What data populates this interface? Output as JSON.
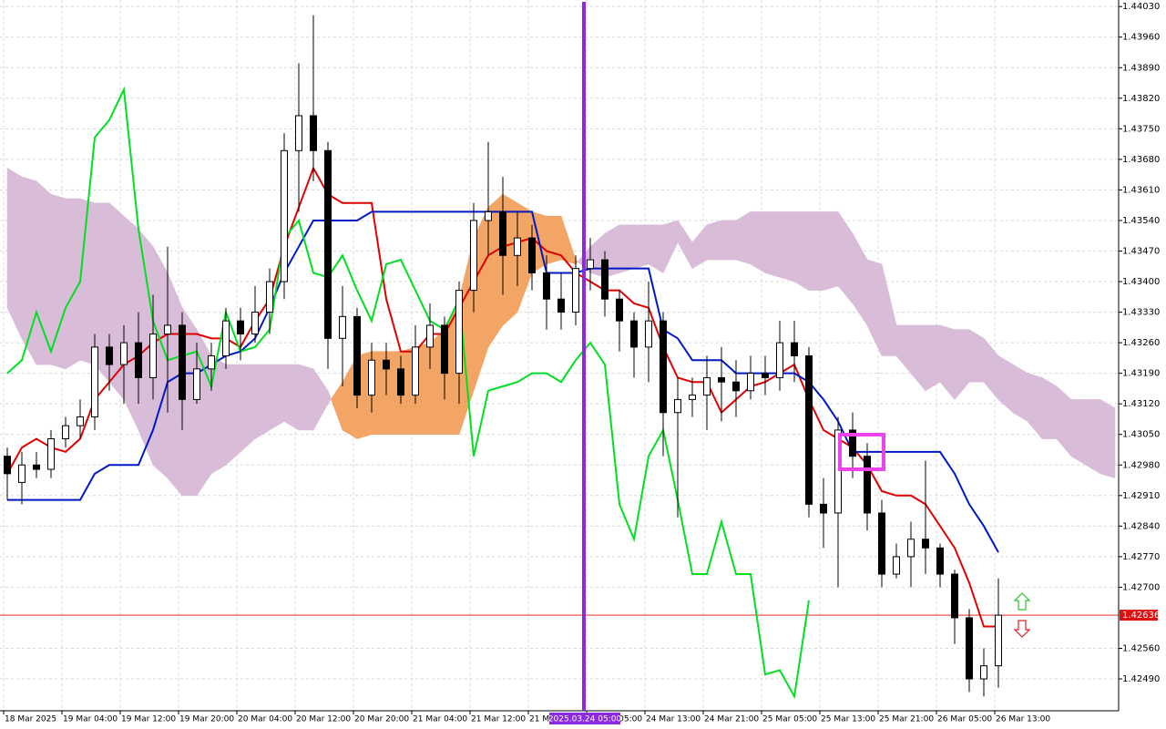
{
  "chart_data": {
    "type": "candlestick",
    "ylim": [
      1.42417,
      1.44045
    ],
    "yticks": [
      {
        "value": 1.4403,
        "label": "1.44030"
      },
      {
        "value": 1.4396,
        "label": "1.43960"
      },
      {
        "value": 1.4389,
        "label": "1.43890"
      },
      {
        "value": 1.4382,
        "label": "1.43820"
      },
      {
        "value": 1.4375,
        "label": "1.43750"
      },
      {
        "value": 1.4368,
        "label": "1.43680"
      },
      {
        "value": 1.4361,
        "label": "1.43610"
      },
      {
        "value": 1.4354,
        "label": "1.43540"
      },
      {
        "value": 1.4347,
        "label": "1.43470"
      },
      {
        "value": 1.434,
        "label": "1.43400"
      },
      {
        "value": 1.4333,
        "label": "1.43330"
      },
      {
        "value": 1.4326,
        "label": "1.43260"
      },
      {
        "value": 1.4319,
        "label": "1.43190"
      },
      {
        "value": 1.4312,
        "label": "1.43120"
      },
      {
        "value": 1.4305,
        "label": "1.43050"
      },
      {
        "value": 1.4298,
        "label": "1.42980"
      },
      {
        "value": 1.4291,
        "label": "1.42910"
      },
      {
        "value": 1.4284,
        "label": "1.42840"
      },
      {
        "value": 1.4277,
        "label": "1.42770"
      },
      {
        "value": 1.427,
        "label": "1.42700"
      },
      {
        "value": 1.4256,
        "label": "1.42560"
      },
      {
        "value": 1.4249,
        "label": "1.42490"
      }
    ],
    "grid": true,
    "x_labels": [
      "18 Mar 2025",
      "19 Mar 04:00",
      "19 Mar 12:00",
      "19 Mar 20:00",
      "20 Mar 04:00",
      "20 Mar 12:00",
      "20 Mar 20:00",
      "21 Mar 04:00",
      "21 Mar 12:00",
      "21 Mar 20:00",
      "24 Mar 05:00",
      "24 Mar 13:00",
      "24 Mar 21:00",
      "25 Mar 05:00",
      "25 Mar 13:00",
      "25 Mar 21:00",
      "26 Mar 05:00",
      "26 Mar 13:00"
    ],
    "cursor_label": "2025.03.24 05:00",
    "last_price": 1.42636,
    "last_price_color": "#e01010",
    "candles": {
      "up_color": "#ffffff",
      "down_color": "#000000",
      "open": [
        1.43,
        1.4294,
        1.4298,
        1.4297,
        1.4304,
        1.4307,
        1.4309,
        1.4325,
        1.4321,
        1.4326,
        1.4318,
        1.4328,
        1.433,
        1.4313,
        1.432,
        1.4323,
        1.4331,
        1.4328,
        1.4333,
        1.434,
        1.437,
        1.4378,
        1.437,
        1.4327,
        1.4332,
        1.4314,
        1.4322,
        1.432,
        1.4314,
        1.4325,
        1.433,
        1.4319,
        1.4338,
        1.4354,
        1.4356,
        1.4346,
        1.435,
        1.4342,
        1.4336,
        1.4333,
        1.4343,
        1.4345,
        1.4336,
        1.4331,
        1.4325,
        1.4331,
        1.431,
        1.4313,
        1.4314,
        1.4318,
        1.4317,
        1.4315,
        1.4319,
        1.4318,
        1.4326,
        1.4323,
        1.4289,
        1.4287,
        1.4306,
        1.43,
        1.4287,
        1.4273,
        1.4277,
        1.4281,
        1.4279,
        1.4273,
        1.4263,
        1.4249,
        1.4252
      ],
      "high": [
        1.4302,
        1.4301,
        1.4301,
        1.4306,
        1.4309,
        1.4313,
        1.4328,
        1.4328,
        1.433,
        1.4333,
        1.4337,
        1.4348,
        1.4333,
        1.4326,
        1.4326,
        1.4334,
        1.4334,
        1.4339,
        1.4343,
        1.4374,
        1.439,
        1.4401,
        1.4372,
        1.4339,
        1.4334,
        1.4326,
        1.4326,
        1.4323,
        1.433,
        1.4335,
        1.4332,
        1.434,
        1.4358,
        1.4372,
        1.4364,
        1.4356,
        1.4353,
        1.4346,
        1.4342,
        1.4346,
        1.435,
        1.4347,
        1.4338,
        1.4333,
        1.434,
        1.4333,
        1.4318,
        1.4318,
        1.4323,
        1.4325,
        1.4322,
        1.4323,
        1.4323,
        1.4331,
        1.4331,
        1.4325,
        1.4295,
        1.4309,
        1.431,
        1.4303,
        1.429,
        1.428,
        1.4285,
        1.4299,
        1.428,
        1.4274,
        1.4265,
        1.4256,
        1.4272
      ],
      "low": [
        1.429,
        1.4289,
        1.4295,
        1.4295,
        1.4302,
        1.4304,
        1.4306,
        1.4315,
        1.4312,
        1.4312,
        1.4313,
        1.431,
        1.4306,
        1.4312,
        1.4315,
        1.432,
        1.4322,
        1.4326,
        1.4328,
        1.4336,
        1.4356,
        1.4363,
        1.432,
        1.4316,
        1.4311,
        1.431,
        1.4314,
        1.4312,
        1.4312,
        1.432,
        1.4313,
        1.4312,
        1.4333,
        1.4346,
        1.4337,
        1.4339,
        1.4338,
        1.4329,
        1.4329,
        1.433,
        1.4338,
        1.4332,
        1.4324,
        1.4318,
        1.4317,
        1.43,
        1.4286,
        1.4309,
        1.4306,
        1.4308,
        1.4309,
        1.4313,
        1.4314,
        1.4315,
        1.4317,
        1.4286,
        1.4279,
        1.427,
        1.4295,
        1.4283,
        1.427,
        1.4272,
        1.427,
        1.4273,
        1.427,
        1.4257,
        1.4246,
        1.4245,
        1.4247
      ],
      "close": [
        1.4296,
        1.4298,
        1.4297,
        1.4304,
        1.4307,
        1.4309,
        1.4325,
        1.4321,
        1.4326,
        1.4318,
        1.4328,
        1.433,
        1.4313,
        1.432,
        1.4323,
        1.4331,
        1.4328,
        1.4333,
        1.434,
        1.437,
        1.4378,
        1.437,
        1.4327,
        1.4332,
        1.4314,
        1.4322,
        1.432,
        1.4314,
        1.4325,
        1.433,
        1.4319,
        1.4338,
        1.4354,
        1.4356,
        1.4346,
        1.435,
        1.4342,
        1.4336,
        1.4333,
        1.4343,
        1.4345,
        1.4336,
        1.4331,
        1.4325,
        1.4331,
        1.431,
        1.4313,
        1.4314,
        1.4318,
        1.4317,
        1.4315,
        1.4319,
        1.4318,
        1.4326,
        1.4323,
        1.4289,
        1.4287,
        1.4306,
        1.43,
        1.4287,
        1.4273,
        1.4277,
        1.4281,
        1.4279,
        1.4273,
        1.4263,
        1.4249,
        1.4252,
        1.42636
      ]
    },
    "cloud": {
      "bull_color": "#f3a566",
      "bear_color": "#d8bcd8",
      "span_a": [
        1.4334,
        1.4327,
        1.4321,
        1.4321,
        1.432,
        1.4322,
        1.4321,
        1.4317,
        1.4313,
        1.4306,
        1.4298,
        1.4295,
        1.4291,
        1.4291,
        1.4296,
        1.4298,
        1.4301,
        1.4304,
        1.4306,
        1.4308,
        1.4306,
        1.4306,
        1.4312,
        1.4317,
        1.4323,
        1.4324,
        1.4324,
        1.4324,
        1.4325,
        1.4326,
        1.4329,
        1.4336,
        1.435,
        1.4357,
        1.436,
        1.4358,
        1.4356,
        1.4355,
        1.4355,
        1.4345,
        1.4342,
        1.4341,
        1.4342,
        1.4343,
        1.4344,
        1.4342,
        1.4349,
        1.4343,
        1.4345,
        1.4345,
        1.4345,
        1.4344,
        1.4342,
        1.4341,
        1.434,
        1.4338,
        1.4338,
        1.4339,
        1.4335,
        1.433,
        1.4323,
        1.4323,
        1.4319,
        1.4315,
        1.4317,
        1.4313,
        1.4317,
        1.4317,
        1.4313,
        1.431,
        1.4308,
        1.4304,
        1.4304,
        1.43,
        1.4298,
        1.4296,
        1.4295
      ],
      "span_b": [
        1.4366,
        1.4364,
        1.4363,
        1.436,
        1.4359,
        1.4359,
        1.4358,
        1.4358,
        1.4355,
        1.4352,
        1.4348,
        1.4342,
        1.4334,
        1.4329,
        1.4323,
        1.4321,
        1.4321,
        1.4321,
        1.4321,
        1.4321,
        1.4321,
        1.432,
        1.4315,
        1.4306,
        1.4304,
        1.4305,
        1.4305,
        1.4305,
        1.4305,
        1.4305,
        1.4305,
        1.4305,
        1.4315,
        1.4325,
        1.433,
        1.4333,
        1.4342,
        1.4344,
        1.4345,
        1.4344,
        1.4348,
        1.4351,
        1.4353,
        1.4353,
        1.4353,
        1.4353,
        1.4354,
        1.4349,
        1.4353,
        1.4354,
        1.4354,
        1.4356,
        1.4356,
        1.4356,
        1.4356,
        1.4356,
        1.4356,
        1.4356,
        1.4351,
        1.4345,
        1.4344,
        1.433,
        1.433,
        1.433,
        1.433,
        1.4329,
        1.4329,
        1.4327,
        1.4323,
        1.4321,
        1.4319,
        1.4318,
        1.4316,
        1.4313,
        1.4313,
        1.4313,
        1.4311
      ]
    },
    "lines": {
      "tenkan": {
        "color": "#e00000",
        "values": [
          1.4296,
          1.4302,
          1.4304,
          1.4302,
          1.4301,
          1.4304,
          1.4313,
          1.4317,
          1.4321,
          1.4323,
          1.4326,
          1.4328,
          1.4328,
          1.4328,
          1.4327,
          1.4327,
          1.4325,
          1.4331,
          1.4336,
          1.4348,
          1.4357,
          1.4366,
          1.436,
          1.4358,
          1.4358,
          1.4358,
          1.4336,
          1.4324,
          1.4324,
          1.4328,
          1.4328,
          1.4334,
          1.434,
          1.4346,
          1.4348,
          1.4349,
          1.435,
          1.4347,
          1.4346,
          1.4342,
          1.434,
          1.4338,
          1.4338,
          1.4335,
          1.4334,
          1.4325,
          1.4318,
          1.4317,
          1.4317,
          1.431,
          1.4313,
          1.4316,
          1.4317,
          1.4319,
          1.4321,
          1.4313,
          1.4306,
          1.4304,
          1.4302,
          1.4298,
          1.4292,
          1.4291,
          1.4291,
          1.4289,
          1.4284,
          1.4279,
          1.4271,
          1.4261,
          1.4261
        ]
      },
      "kijun": {
        "color": "#0018c8",
        "values": [
          1.429,
          1.429,
          1.429,
          1.429,
          1.429,
          1.429,
          1.4296,
          1.4298,
          1.4298,
          1.4298,
          1.4306,
          1.4317,
          1.4319,
          1.4319,
          1.4321,
          1.4323,
          1.4324,
          1.4327,
          1.4334,
          1.4342,
          1.4348,
          1.4354,
          1.4354,
          1.4354,
          1.4354,
          1.4356,
          1.4356,
          1.4356,
          1.4356,
          1.4356,
          1.4356,
          1.4356,
          1.4356,
          1.4356,
          1.4356,
          1.4356,
          1.4356,
          1.4342,
          1.4342,
          1.4342,
          1.4343,
          1.4343,
          1.4343,
          1.4343,
          1.4343,
          1.4329,
          1.4327,
          1.4322,
          1.4322,
          1.4322,
          1.4319,
          1.4319,
          1.4319,
          1.4319,
          1.4319,
          1.4317,
          1.4313,
          1.4308,
          1.4301,
          1.4301,
          1.4301,
          1.4301,
          1.4301,
          1.4301,
          1.4301,
          1.4296,
          1.4289,
          1.4284,
          1.4278
        ]
      },
      "chikou": {
        "color": "#00e020",
        "values": [
          1.4319,
          1.4322,
          1.4333,
          1.4324,
          1.4334,
          1.434,
          1.4373,
          1.4377,
          1.4384,
          1.4352,
          1.4331,
          1.4322,
          1.4323,
          1.4324,
          1.4316,
          1.4333,
          1.4324,
          1.4325,
          1.4329,
          1.435,
          1.4354,
          1.4342,
          1.4341,
          1.4346,
          1.4338,
          1.4331,
          1.4344,
          1.4345,
          1.4338,
          1.4331,
          1.4329,
          1.4336,
          1.43,
          1.4315,
          1.4316,
          1.4317,
          1.4319,
          1.4319,
          1.4317,
          1.4322,
          1.4326,
          1.4321,
          1.4289,
          1.4281,
          1.43,
          1.4306,
          1.429,
          1.4273,
          1.4273,
          1.4285,
          1.4273,
          1.4273,
          1.425,
          1.4251,
          1.4245,
          1.4267
        ]
      }
    }
  }
}
